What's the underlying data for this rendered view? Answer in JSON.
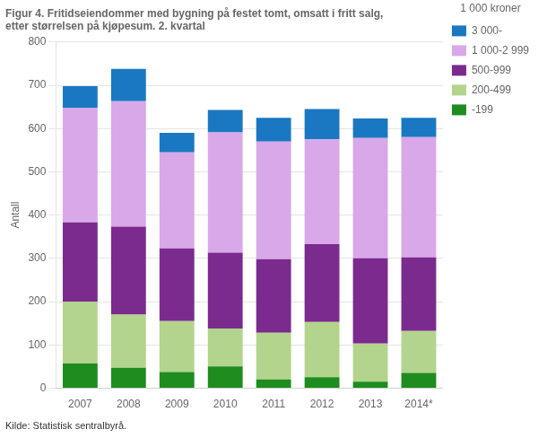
{
  "chart_data": {
    "type": "bar",
    "title": [
      "Figur 4. Fritidseiendommer med bygning på festet tomt, omsatt i fritt salg,",
      "etter størrelsen på kjøpesum. 2. kvartal"
    ],
    "ylabel": "Antall",
    "legend_title": "1 000 kroner",
    "annotations": [
      "Kilde: Statistisk sentralbyrå."
    ],
    "categories": [
      "2007",
      "2008",
      "2009",
      "2010",
      "2011",
      "2012",
      "2013",
      "2014*"
    ],
    "series": [
      {
        "name": "-199",
        "color": "#1e8c1e",
        "values": [
          57,
          47,
          37,
          50,
          20,
          25,
          15,
          35
        ]
      },
      {
        "name": "200-499",
        "color": "#b2d48c",
        "values": [
          143,
          123,
          118,
          88,
          108,
          128,
          88,
          97
        ]
      },
      {
        "name": "500-999",
        "color": "#7b2a8e",
        "values": [
          183,
          203,
          168,
          175,
          170,
          180,
          197,
          170
        ]
      },
      {
        "name": "1 000-2 999",
        "color": "#d8a8e8",
        "values": [
          265,
          290,
          222,
          278,
          272,
          242,
          278,
          278
        ]
      },
      {
        "name": "3 000-",
        "color": "#1a78c2",
        "values": [
          50,
          75,
          45,
          52,
          55,
          70,
          45,
          45
        ]
      }
    ],
    "ylim": [
      0,
      800
    ],
    "yticks": [
      0,
      100,
      200,
      300,
      400,
      500,
      600,
      700,
      800
    ],
    "stacked": true,
    "grid": true,
    "legend": "right"
  }
}
